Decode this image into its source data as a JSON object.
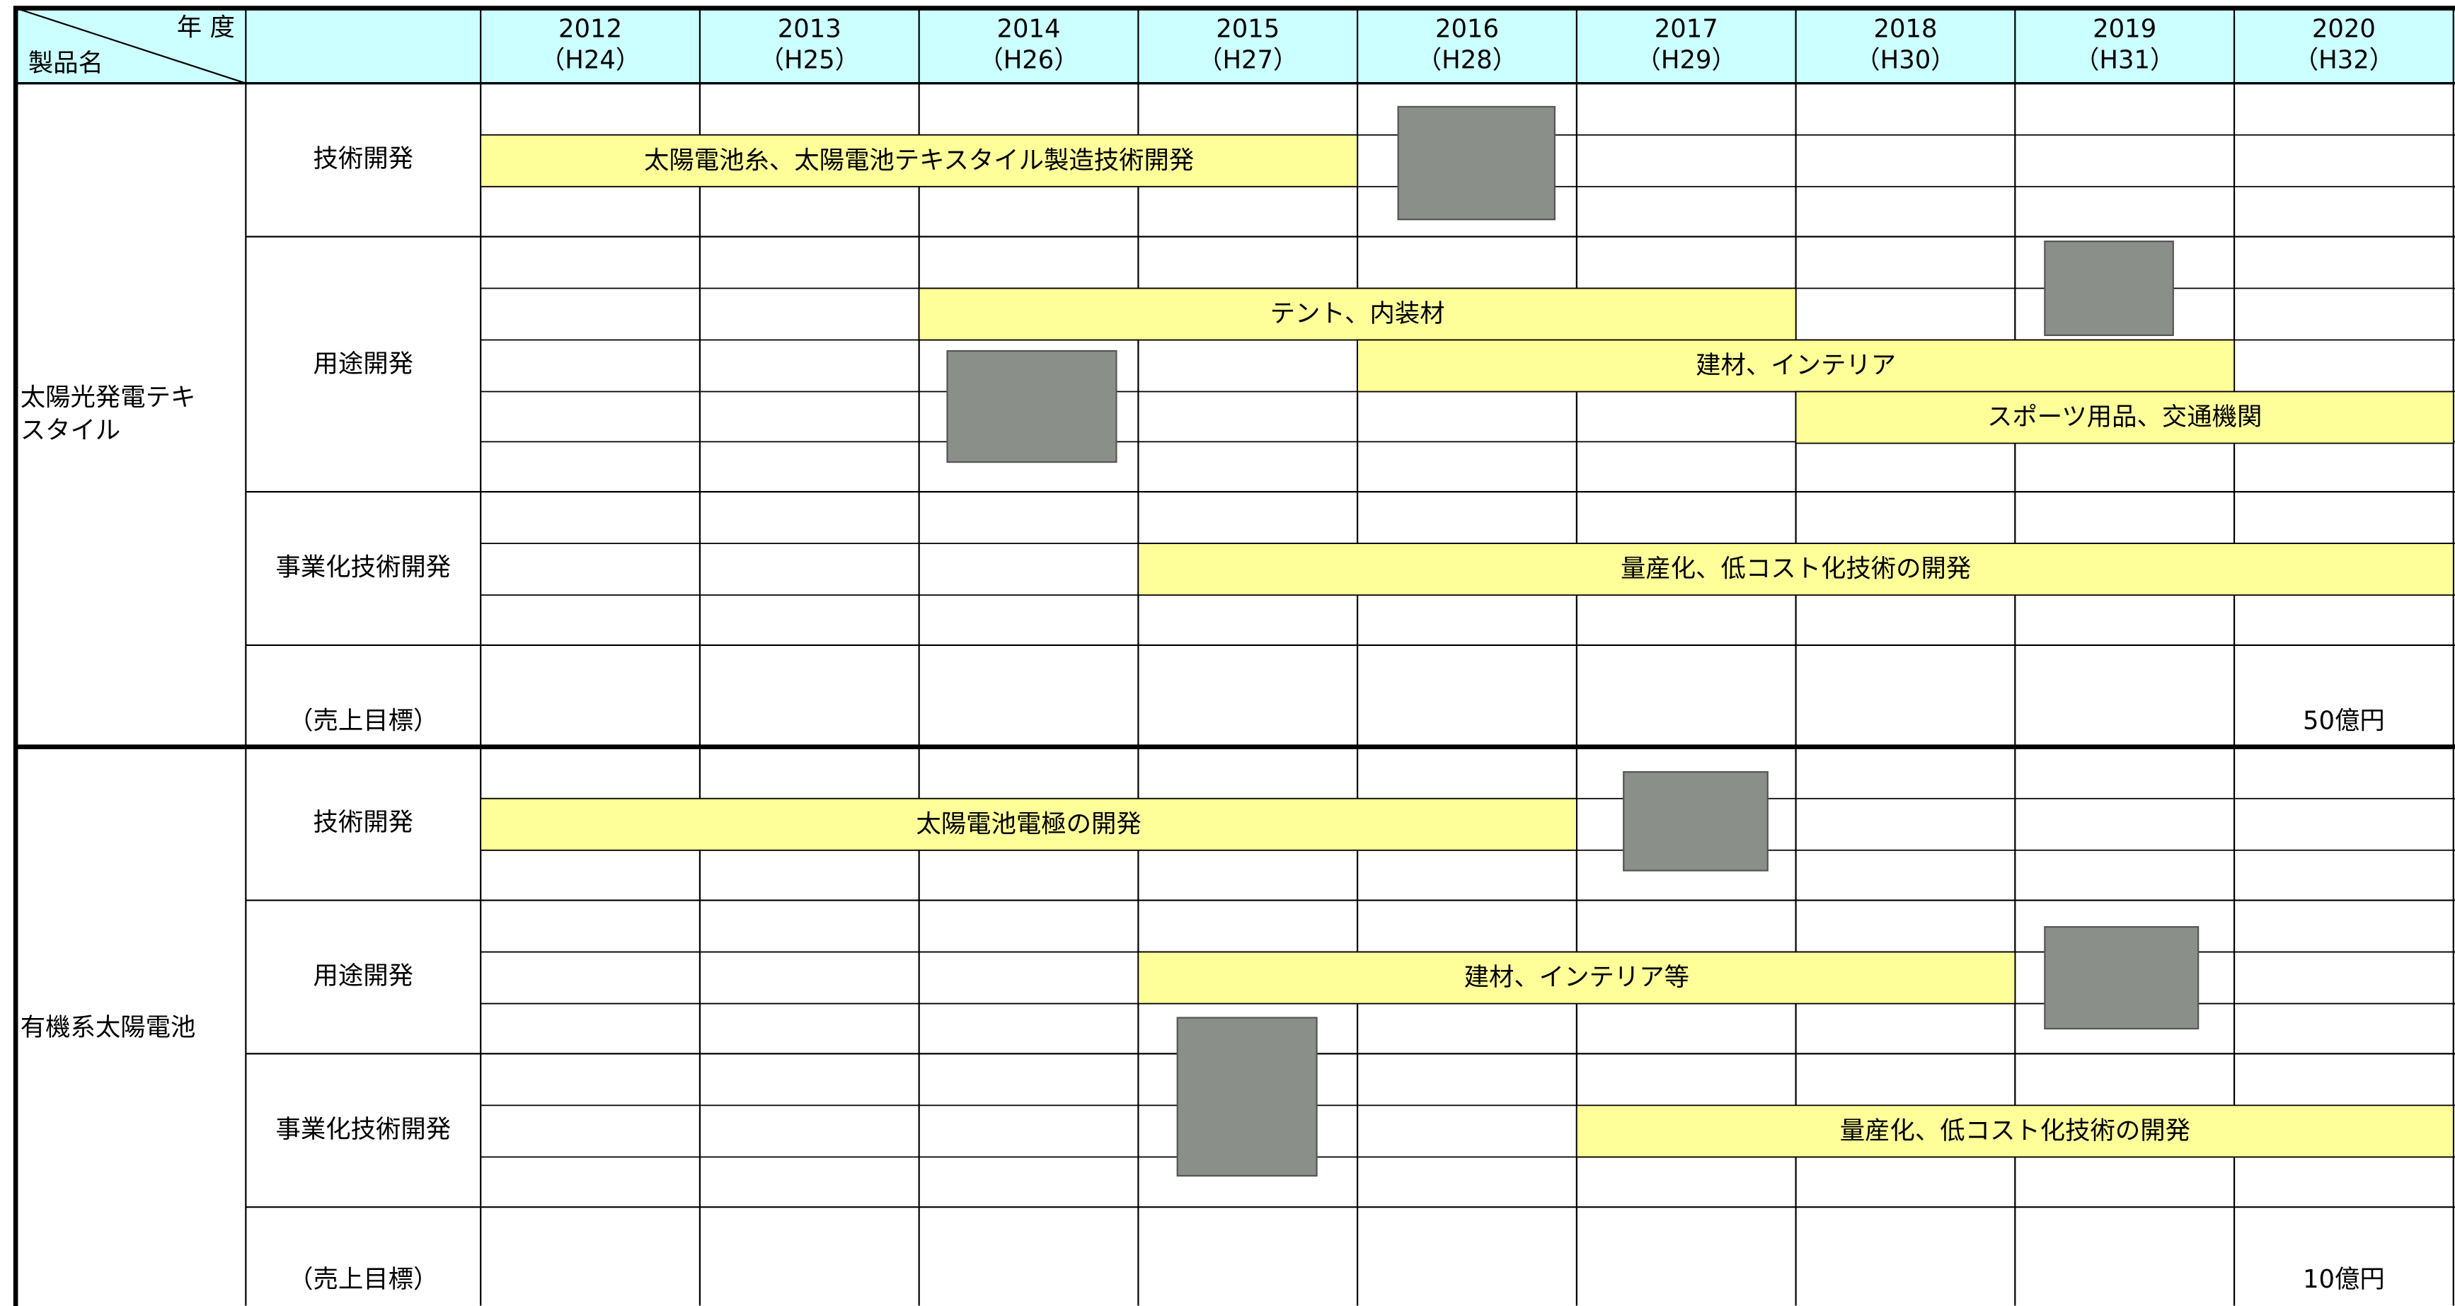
{
  "header": {
    "year_label": "年 度",
    "product_label": "製品名",
    "years": [
      {
        "year": "2012",
        "era": "（H24）"
      },
      {
        "year": "2013",
        "era": "（H25）"
      },
      {
        "year": "2014",
        "era": "（H26）"
      },
      {
        "year": "2015",
        "era": "（H27）"
      },
      {
        "year": "2016",
        "era": "（H28）"
      },
      {
        "year": "2017",
        "era": "（H29）"
      },
      {
        "year": "2018",
        "era": "（H30）"
      },
      {
        "year": "2019",
        "era": "（H31）"
      },
      {
        "year": "2020",
        "era": "（H32）"
      }
    ]
  },
  "sections": [
    {
      "product": "太陽光発電テキスタイル",
      "rows": [
        {
          "label": "技術開発",
          "bars": [
            "太陽電池糸、太陽電池テキスタイル製造技術開発"
          ]
        },
        {
          "label": "用途開発",
          "bars": [
            "テント、内装材",
            "建材、インテリア",
            "スポーツ用品、交通機関"
          ]
        },
        {
          "label": "事業化技術開発",
          "bars": [
            "量産化、低コスト化技術の開発"
          ]
        },
        {
          "label": "（売上目標）",
          "target": "50億円"
        }
      ]
    },
    {
      "product": "有機系太陽電池",
      "rows": [
        {
          "label": "技術開発",
          "bars": [
            "太陽電池電極の開発"
          ]
        },
        {
          "label": "用途開発",
          "bars": [
            "建材、インテリア等"
          ]
        },
        {
          "label": "事業化技術開発",
          "bars": [
            "量産化、低コスト化技術の開発"
          ]
        },
        {
          "label": "（売上目標）",
          "target": "10億円"
        }
      ]
    }
  ]
}
